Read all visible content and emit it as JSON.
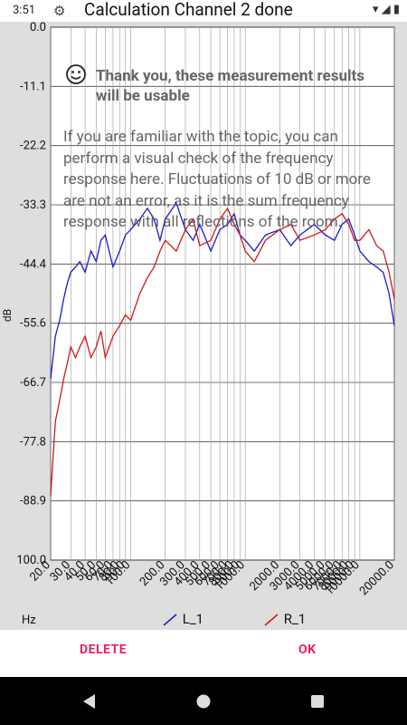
{
  "status_bar": {
    "time": "3:51",
    "settings_icon": "gear-icon",
    "wifi_icon": "wifi-icon",
    "cell_icon": "cell-icon",
    "battery_icon": "battery-icon"
  },
  "window": {
    "title": "Calculation Channel 2 done"
  },
  "dialog": {
    "heading": "Thank you, these measurement results will be usable",
    "icon": "smile-icon",
    "body": "If you are familiar with the topic, you can perform a visual check of the frequency response here. Fluctuations of 10 dB or more are not an error, as it is the sum frequency response with all reflections of the room."
  },
  "axis": {
    "x_unit": "Hz",
    "y_unit": "dB"
  },
  "legend": [
    {
      "label": "L_1",
      "color": "#1a1acc"
    },
    {
      "label": "R_1",
      "color": "#cc1a1a"
    }
  ],
  "buttons": {
    "delete": "DELETE",
    "ok": "OK"
  },
  "nav": {
    "back": "back-icon",
    "home": "home-icon",
    "recents": "recents-icon"
  },
  "chart_data": {
    "type": "line",
    "xscale": "log",
    "xlim": [
      20,
      20000
    ],
    "ylim": [
      0.0,
      100.0
    ],
    "y_ticks": [
      "0.0",
      "-11.1",
      "-22.2",
      "-33.3",
      "-44.4",
      "-55.6",
      "-66.7",
      "-77.8",
      "-88.9",
      "100.0"
    ],
    "x_ticks": [
      "20.0",
      "30.0",
      "40.0",
      "50.0",
      "60.0",
      "70.0",
      "80.0",
      "90.0",
      "100.0",
      "200.0",
      "300.0",
      "400.0",
      "500.0",
      "600.0",
      "700.0",
      "800.0",
      "900.0",
      "1000.0",
      "2000.0",
      "3000.0",
      "4000.0",
      "5000.0",
      "6000.0",
      "7000.0",
      "8000.0",
      "9000.0",
      "10000.0",
      "20000.0"
    ],
    "ylabel": "dB",
    "xlabel": "Hz",
    "grid": true,
    "legend_position": "bottom",
    "series": [
      {
        "name": "L_1",
        "color": "#1a1acc",
        "x": [
          20,
          22,
          24,
          26,
          28,
          30,
          33,
          36,
          40,
          45,
          50,
          55,
          60,
          70,
          80,
          90,
          100,
          120,
          140,
          160,
          180,
          200,
          250,
          300,
          350,
          400,
          500,
          600,
          700,
          800,
          900,
          1000,
          1200,
          1500,
          2000,
          2500,
          3000,
          4000,
          5000,
          6000,
          7000,
          8000,
          9000,
          10000,
          12000,
          14000,
          16000,
          18000,
          20000
        ],
        "y": [
          -66,
          -58,
          -55,
          -51,
          -48,
          -46,
          -45,
          -44,
          -46,
          -42,
          -44,
          -40,
          -39,
          -45,
          -42,
          -39,
          -38,
          -36,
          -34,
          -36,
          -40,
          -36,
          -33,
          -38,
          -40,
          -37,
          -42,
          -38,
          -37,
          -35,
          -39,
          -40,
          -42,
          -39,
          -38,
          -41,
          -39,
          -37,
          -39,
          -40,
          -37,
          -36,
          -39,
          -42,
          -44,
          -45,
          -46,
          -50,
          -56
        ]
      },
      {
        "name": "R_1",
        "color": "#cc1a1a",
        "x": [
          20,
          22,
          24,
          26,
          28,
          30,
          33,
          36,
          40,
          45,
          50,
          55,
          60,
          70,
          80,
          90,
          100,
          120,
          140,
          160,
          180,
          200,
          250,
          300,
          350,
          400,
          500,
          600,
          700,
          800,
          900,
          1000,
          1200,
          1500,
          2000,
          2500,
          3000,
          4000,
          5000,
          6000,
          7000,
          8000,
          9000,
          10000,
          12000,
          14000,
          16000,
          18000,
          20000
        ],
        "y": [
          -88,
          -74,
          -70,
          -66,
          -63,
          -60,
          -62,
          -60,
          -58,
          -62,
          -60,
          -57,
          -62,
          -58,
          -56,
          -54,
          -55,
          -50,
          -47,
          -45,
          -42,
          -40,
          -42,
          -38,
          -36,
          -41,
          -40,
          -36,
          -34,
          -37,
          -39,
          -42,
          -44,
          -40,
          -38,
          -37,
          -40,
          -39,
          -38,
          -36,
          -35,
          -37,
          -40,
          -40,
          -38,
          -41,
          -42,
          -46,
          -51
        ]
      }
    ]
  }
}
